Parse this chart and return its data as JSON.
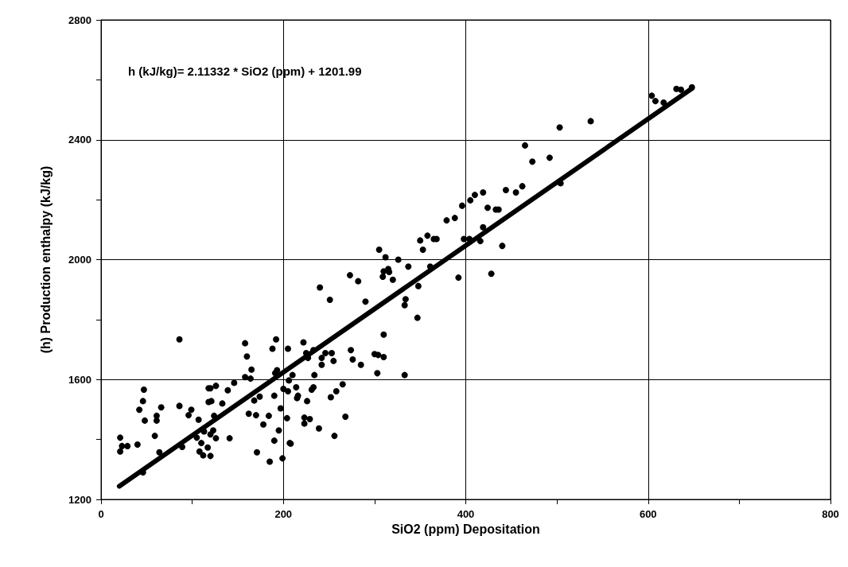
{
  "chart_data": {
    "type": "scatter",
    "xlabel": "SiO2 (ppm) Depositation",
    "ylabel": "(h) Production enthalpy (kJ/kg)",
    "annotations": [
      "h (kJ/kg)= 2.11332 * SiO2 (ppm) + 1201.99"
    ],
    "xlim": [
      0,
      800
    ],
    "xticks": [
      0,
      {
        "value": 100,
        "label": null
      },
      200,
      {
        "value": 300,
        "label": null
      },
      400,
      {
        "value": 500,
        "label": null
      },
      600,
      {
        "value": 700,
        "label": null
      },
      800
    ],
    "ylim": [
      1200,
      2800
    ],
    "yticks": [
      1200,
      {
        "value": 1400,
        "label": null
      },
      1600,
      {
        "value": 1800,
        "label": null
      },
      2000,
      {
        "value": 2200,
        "label": null
      },
      2400,
      {
        "value": 2600,
        "label": null
      },
      2800
    ],
    "grid": true,
    "series": [
      {
        "color": "#000000",
        "marker": "circle",
        "x": [
          86,
          21,
          23,
          21,
          29,
          40,
          47,
          46,
          42,
          48,
          59,
          61,
          61,
          66,
          64,
          46,
          86,
          89,
          96,
          99,
          107,
          105,
          110,
          108,
          112,
          117,
          120,
          120,
          123,
          126,
          113,
          118,
          120,
          126,
          118,
          121,
          124,
          133,
          139,
          146,
          141,
          158,
          160,
          165,
          158,
          164,
          168,
          174,
          162,
          170,
          178,
          171,
          185,
          184,
          190,
          195,
          190,
          199,
          197,
          188,
          192,
          205,
          191,
          193,
          200,
          204,
          207,
          222,
          206,
          210,
          205,
          214,
          216,
          215,
          226,
          231,
          233,
          234,
          225,
          227,
          233,
          242,
          242,
          246,
          253,
          255,
          274,
          276,
          285,
          265,
          258,
          252,
          268,
          223,
          229,
          223,
          239,
          256,
          208,
          300,
          304,
          310,
          303,
          333,
          310,
          333,
          347,
          290,
          240,
          251,
          273,
          282,
          305,
          312,
          326,
          337,
          315,
          310,
          316,
          309,
          320,
          334,
          348,
          361,
          353,
          350,
          358,
          365,
          368,
          379,
          388,
          396,
          392,
          398,
          404,
          416,
          405,
          410,
          419,
          424,
          433,
          436,
          419,
          428,
          440,
          444,
          455,
          462,
          473,
          465,
          492,
          503,
          504,
          537,
          604,
          608,
          617,
          631,
          636,
          648
        ],
        "values": [
          1734,
          1406,
          1378,
          1360,
          1378,
          1383,
          1566,
          1528,
          1499,
          1463,
          1412,
          1479,
          1463,
          1507,
          1357,
          1290,
          1512,
          1375,
          1481,
          1499,
          1466,
          1406,
          1388,
          1360,
          1347,
          1373,
          1345,
          1417,
          1430,
          1404,
          1427,
          1571,
          1571,
          1579,
          1525,
          1528,
          1479,
          1520,
          1564,
          1589,
          1404,
          1721,
          1677,
          1633,
          1608,
          1603,
          1530,
          1543,
          1486,
          1481,
          1450,
          1357,
          1326,
          1479,
          1546,
          1430,
          1396,
          1337,
          1504,
          1703,
          1734,
          1703,
          1621,
          1631,
          1569,
          1471,
          1388,
          1724,
          1597,
          1615,
          1561,
          1574,
          1546,
          1538,
          1528,
          1566,
          1574,
          1615,
          1688,
          1672,
          1698,
          1672,
          1649,
          1688,
          1688,
          1662,
          1698,
          1667,
          1649,
          1584,
          1561,
          1541,
          1476,
          1473,
          1468,
          1453,
          1437,
          1412,
          1386,
          1685,
          1682,
          1675,
          1621,
          1615,
          1750,
          1848,
          1806,
          1860,
          1907,
          1866,
          1948,
          1928,
          2033,
          2008,
          2000,
          1977,
          1969,
          1961,
          1959,
          1943,
          1933,
          1868,
          1912,
          1977,
          2033,
          2064,
          2080,
          2069,
          2069,
          2131,
          2139,
          2180,
          1940,
          2069,
          2069,
          2062,
          2198,
          2216,
          2224,
          2173,
          2167,
          2167,
          2108,
          1953,
          2046,
          2232,
          2224,
          2245,
          2327,
          2381,
          2340,
          2441,
          2255,
          2462,
          2547,
          2529,
          2524,
          2570,
          2567,
          2575
        ]
      },
      {
        "type": "line",
        "color": "#000000",
        "marker": "none",
        "x": [
          20,
          648
        ],
        "values": [
          1244,
          2571
        ]
      }
    ]
  }
}
